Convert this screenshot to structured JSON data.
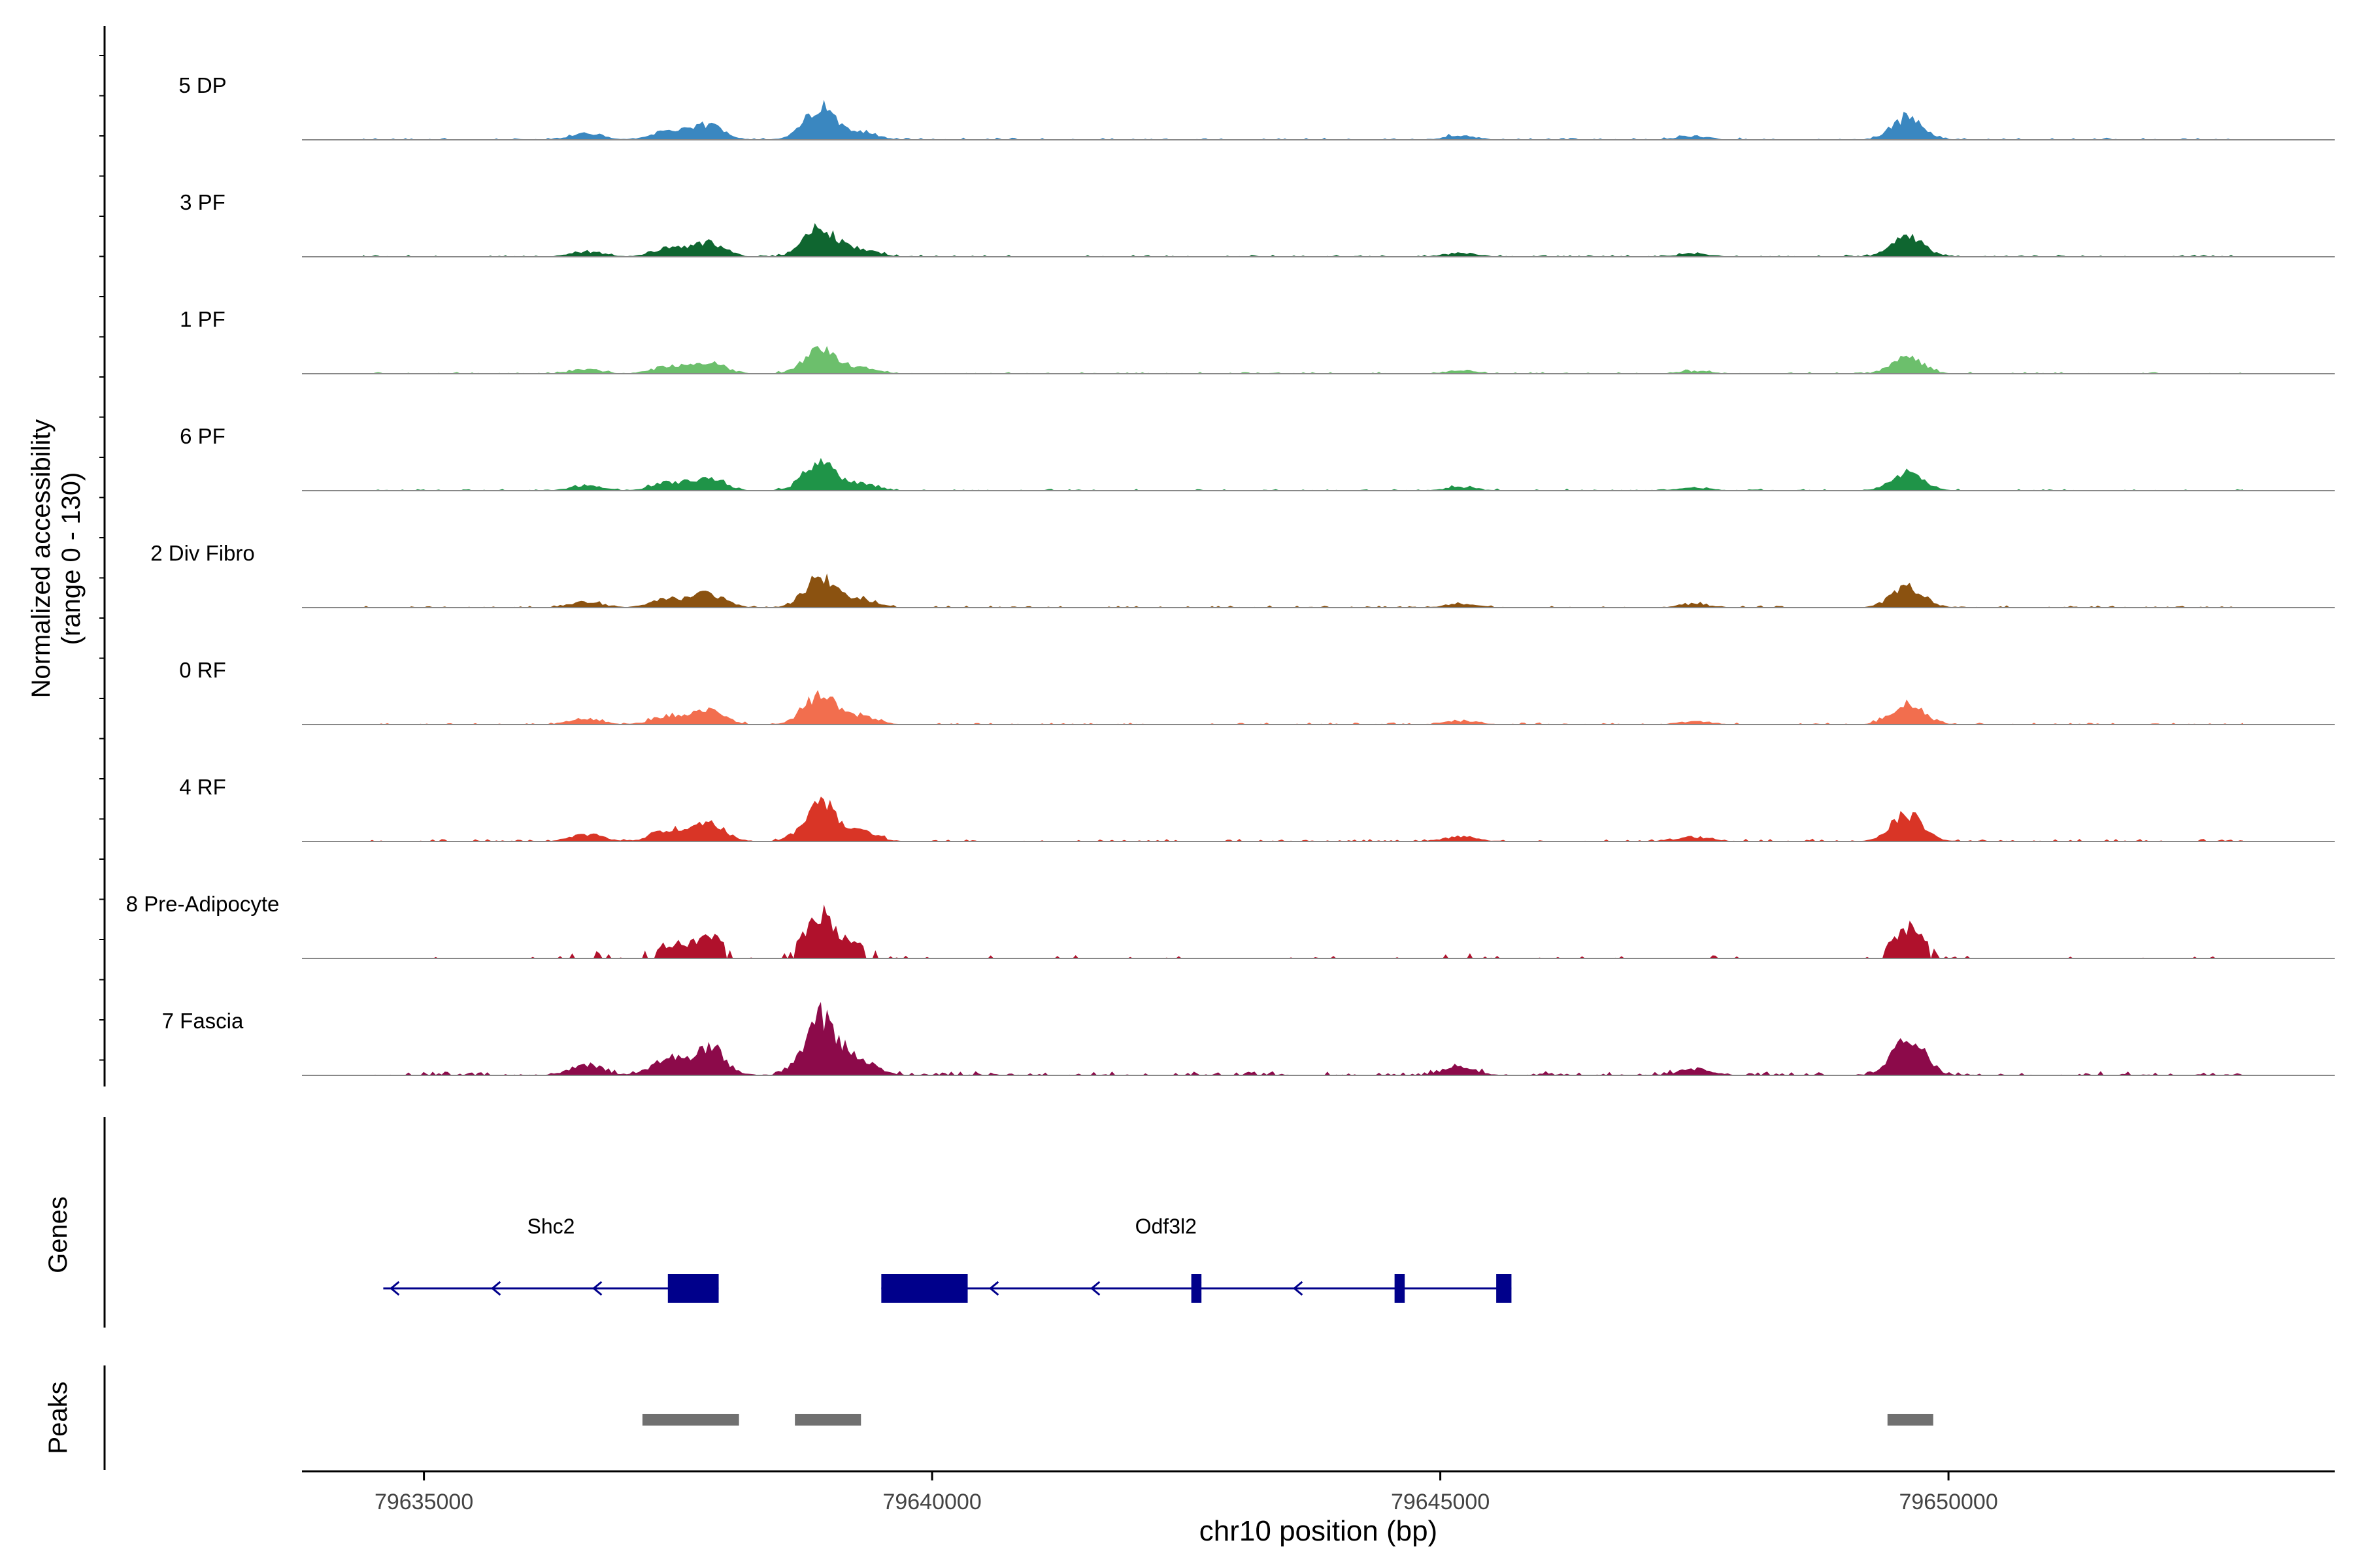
{
  "chart_data": {
    "type": "area",
    "title": "",
    "y_axis_title_line1": "Normalized accessibility",
    "y_axis_title_line2": "(range 0 - 130)",
    "y_range": [
      0,
      130
    ],
    "xlabel": "chr10 position (bp)",
    "x_range": [
      79633800,
      79653800
    ],
    "x_ticks": [
      79635000,
      79640000,
      79645000,
      79650000
    ],
    "x_tick_labels": [
      "79635000",
      "79640000",
      "79645000",
      "79650000"
    ],
    "tracks": [
      {
        "name": "5 DP",
        "color": "#3a87c0",
        "scale": 0.55
      },
      {
        "name": "3 PF",
        "color": "#0f6630",
        "scale": 0.5
      },
      {
        "name": "1 PF",
        "color": "#6cbf6c",
        "scale": 0.42
      },
      {
        "name": "6 PF",
        "color": "#1f9448",
        "scale": 0.48
      },
      {
        "name": "2 Div Fibro",
        "color": "#8b5210",
        "scale": 0.52
      },
      {
        "name": "0 RF",
        "color": "#f26e4e",
        "scale": 0.52
      },
      {
        "name": "4 RF",
        "color": "#d93526",
        "scale": 0.68
      },
      {
        "name": "8 Pre-Adipocyte",
        "color": "#b0112c",
        "scale": 0.65
      },
      {
        "name": "7 Fascia",
        "color": "#8c0a4a",
        "scale": 1.0
      }
    ],
    "peak_centers": [
      {
        "pos": 79637800,
        "height": 0.26
      },
      {
        "pos": 79637400,
        "height": 0.16
      },
      {
        "pos": 79638900,
        "height": 0.55
      },
      {
        "pos": 79639300,
        "height": 0.14
      },
      {
        "pos": 79649600,
        "height": 0.38
      },
      {
        "pos": 79636600,
        "height": 0.1
      },
      {
        "pos": 79645200,
        "height": 0.07
      },
      {
        "pos": 79647500,
        "height": 0.06
      }
    ],
    "genes_panel_label": "Genes",
    "genes": [
      {
        "name": "Shc2",
        "start": 79634600,
        "end": 79637900,
        "strand": "-",
        "exons": [
          [
            79637400,
            79637900
          ]
        ]
      },
      {
        "name": "Odf3l2",
        "start": 79639500,
        "end": 79645700,
        "strand": "-",
        "exons": [
          [
            79639500,
            79640350
          ],
          [
            79642550,
            79642650
          ],
          [
            79644550,
            79644650
          ],
          [
            79645550,
            79645700
          ]
        ]
      }
    ],
    "peaks_panel_label": "Peaks",
    "peaks": [
      {
        "start": 79637150,
        "end": 79638100
      },
      {
        "start": 79638650,
        "end": 79639300
      },
      {
        "start": 79649400,
        "end": 79649850
      }
    ],
    "axis_color": "#000000",
    "baseline_color": "#888888",
    "gene_color": "#00008b",
    "peak_color": "#707070"
  }
}
